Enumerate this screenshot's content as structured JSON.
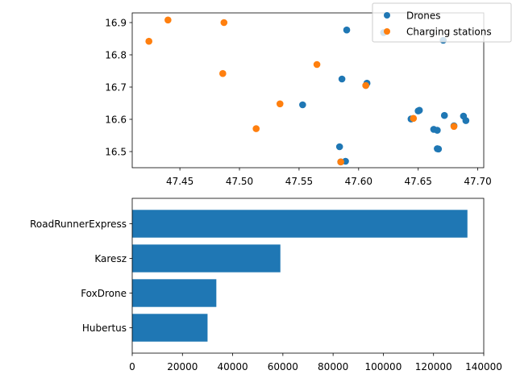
{
  "chart_data": [
    {
      "type": "scatter",
      "xlim": [
        47.41,
        47.705
      ],
      "ylim": [
        16.45,
        16.93
      ],
      "xticks": [
        "47.45",
        "47.50",
        "47.55",
        "47.60",
        "47.65",
        "47.70"
      ],
      "yticks": [
        "16.5",
        "16.6",
        "16.7",
        "16.8",
        "16.9"
      ],
      "legend_placement": "top-right",
      "series": [
        {
          "name": "Drones",
          "color": "#1f77b4",
          "points": [
            [
              47.59,
              16.877
            ],
            [
              47.621,
              16.869
            ],
            [
              47.671,
              16.845
            ],
            [
              47.586,
              16.725
            ],
            [
              47.607,
              16.712
            ],
            [
              47.606,
              16.705
            ],
            [
              47.553,
              16.645
            ],
            [
              47.651,
              16.628
            ],
            [
              47.65,
              16.626
            ],
            [
              47.672,
              16.612
            ],
            [
              47.688,
              16.61
            ],
            [
              47.69,
              16.596
            ],
            [
              47.644,
              16.601
            ],
            [
              47.68,
              16.58
            ],
            [
              47.663,
              16.569
            ],
            [
              47.666,
              16.566
            ],
            [
              47.666,
              16.509
            ],
            [
              47.667,
              16.508
            ],
            [
              47.584,
              16.515
            ],
            [
              47.589,
              16.47
            ],
            [
              47.585,
              16.468
            ]
          ]
        },
        {
          "name": "Charging stations",
          "color": "#ff7f0e",
          "points": [
            [
              47.44,
              16.908
            ],
            [
              47.487,
              16.9
            ],
            [
              47.424,
              16.842
            ],
            [
              47.565,
              16.77
            ],
            [
              47.486,
              16.742
            ],
            [
              47.606,
              16.705
            ],
            [
              47.534,
              16.648
            ],
            [
              47.646,
              16.603
            ],
            [
              47.68,
              16.578
            ],
            [
              47.514,
              16.571
            ],
            [
              47.585,
              16.468
            ]
          ]
        }
      ]
    },
    {
      "type": "bar",
      "orientation": "horizontal",
      "categories": [
        "RoadRunnerExpress",
        "Karesz",
        "FoxDrone",
        "Hubertus"
      ],
      "values": [
        133500,
        59000,
        33500,
        30000
      ],
      "xlim": [
        0,
        140000
      ],
      "xticks": [
        "0",
        "20000",
        "40000",
        "60000",
        "80000",
        "100000",
        "120000",
        "140000"
      ],
      "color": "#1f77b4"
    }
  ]
}
